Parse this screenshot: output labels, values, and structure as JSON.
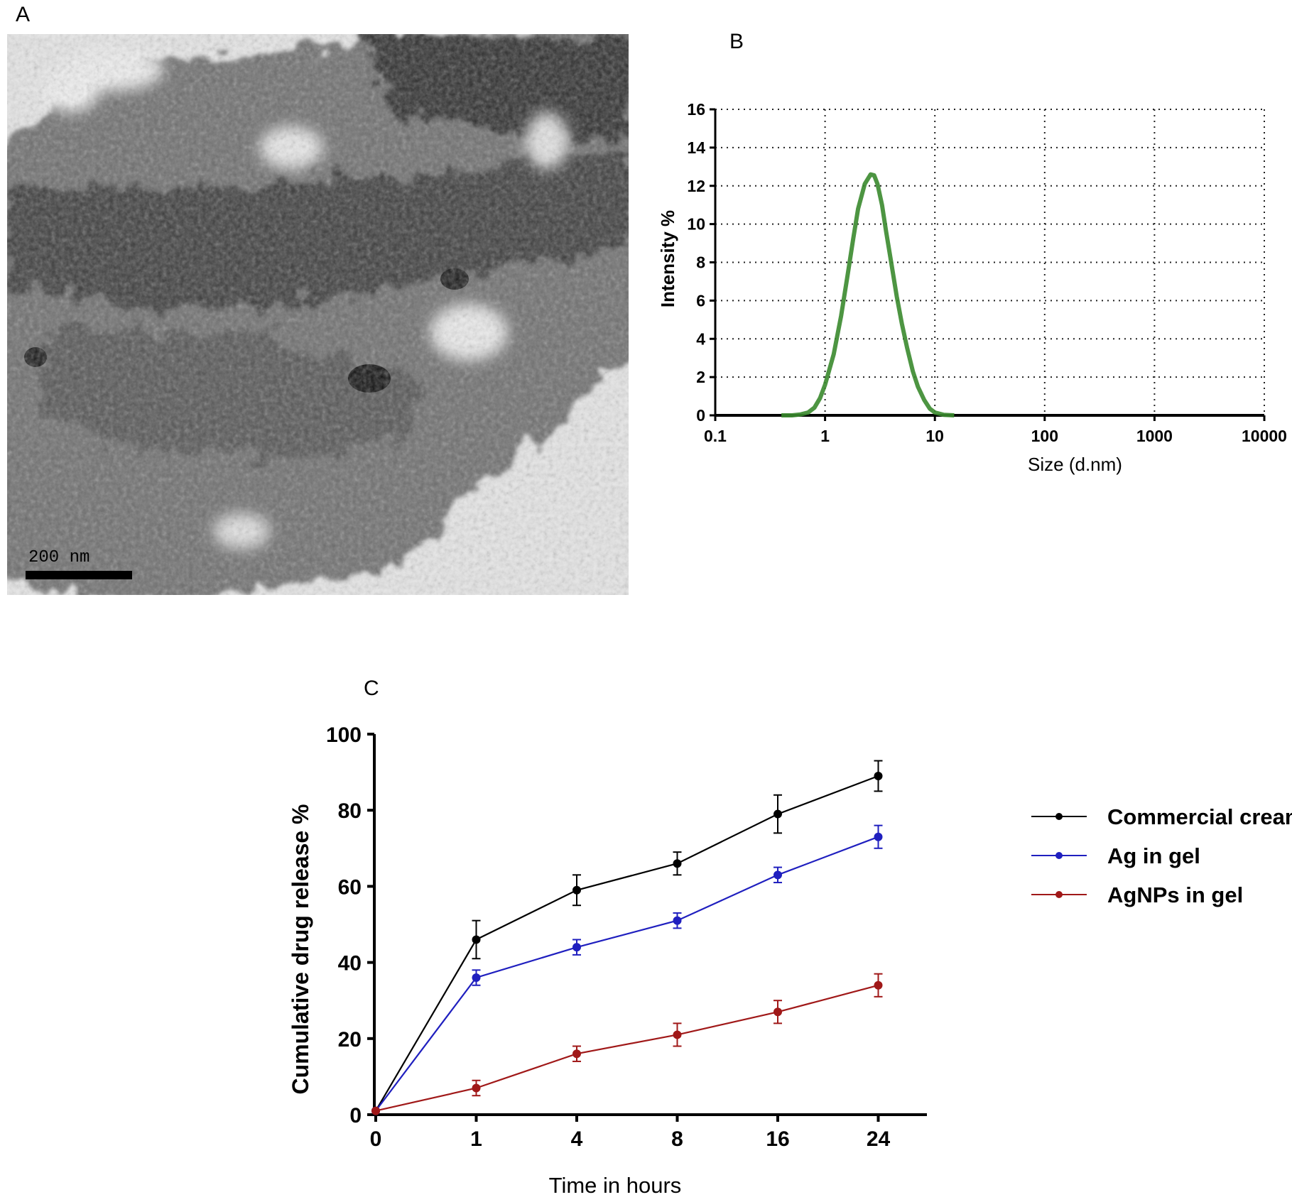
{
  "panels": {
    "a": {
      "letter": "A",
      "scale_bar_label": "200 nm"
    },
    "b": {
      "letter": "B"
    },
    "c": {
      "letter": "C"
    }
  },
  "chart_data": [
    {
      "id": "B",
      "type": "line",
      "xlabel": "Size (d.nm)",
      "ylabel": "Intensity %",
      "x_scale": "log",
      "xlim": [
        0.1,
        10000
      ],
      "ylim": [
        0,
        16
      ],
      "x_ticks": [
        "0.1",
        "1",
        "10",
        "100",
        "1000",
        "10000"
      ],
      "y_ticks": [
        "0",
        "2",
        "4",
        "6",
        "8",
        "10",
        "12",
        "14",
        "16"
      ],
      "grid": true,
      "grid_style": "dotted",
      "series": [
        {
          "color": "#3a8a2e",
          "x": [
            0.4,
            0.5,
            0.6,
            0.7,
            0.8,
            0.9,
            1.0,
            1.2,
            1.4,
            1.6,
            1.8,
            2.0,
            2.3,
            2.6,
            2.8,
            3.0,
            3.3,
            3.6,
            4.0,
            4.5,
            5.0,
            5.6,
            6.3,
            7.0,
            8.0,
            9.0,
            10.0,
            12.0,
            15.0
          ],
          "y": [
            0,
            0,
            0.05,
            0.15,
            0.4,
            0.9,
            1.6,
            3.2,
            5.2,
            7.3,
            9.2,
            10.8,
            12.1,
            12.6,
            12.55,
            12.1,
            11.0,
            9.6,
            8.0,
            6.2,
            4.8,
            3.5,
            2.3,
            1.5,
            0.8,
            0.35,
            0.15,
            0.03,
            0
          ]
        }
      ]
    },
    {
      "id": "C",
      "type": "line",
      "xlabel": "Time in hours",
      "ylabel": "Cumulative  drug release %",
      "categories": [
        "0",
        "1",
        "4",
        "8",
        "16",
        "24"
      ],
      "ylim": [
        0,
        100
      ],
      "y_ticks": [
        "0",
        "20",
        "40",
        "60",
        "80",
        "100"
      ],
      "grid": false,
      "legend_position": "right",
      "series": [
        {
          "name": "Commercial cream",
          "color": "#000000",
          "values": [
            1,
            46,
            59,
            66,
            79,
            89
          ],
          "errors": [
            0,
            5,
            4,
            3,
            5,
            4
          ]
        },
        {
          "name": "Ag in gel",
          "color": "#1f1fbf",
          "values": [
            1,
            36,
            44,
            51,
            63,
            73
          ],
          "errors": [
            0,
            2,
            2,
            2,
            2,
            3
          ]
        },
        {
          "name": "AgNPs in gel",
          "color": "#a01818",
          "values": [
            1,
            7,
            16,
            21,
            27,
            34
          ],
          "errors": [
            0,
            2,
            2,
            3,
            3,
            3
          ]
        }
      ]
    }
  ]
}
